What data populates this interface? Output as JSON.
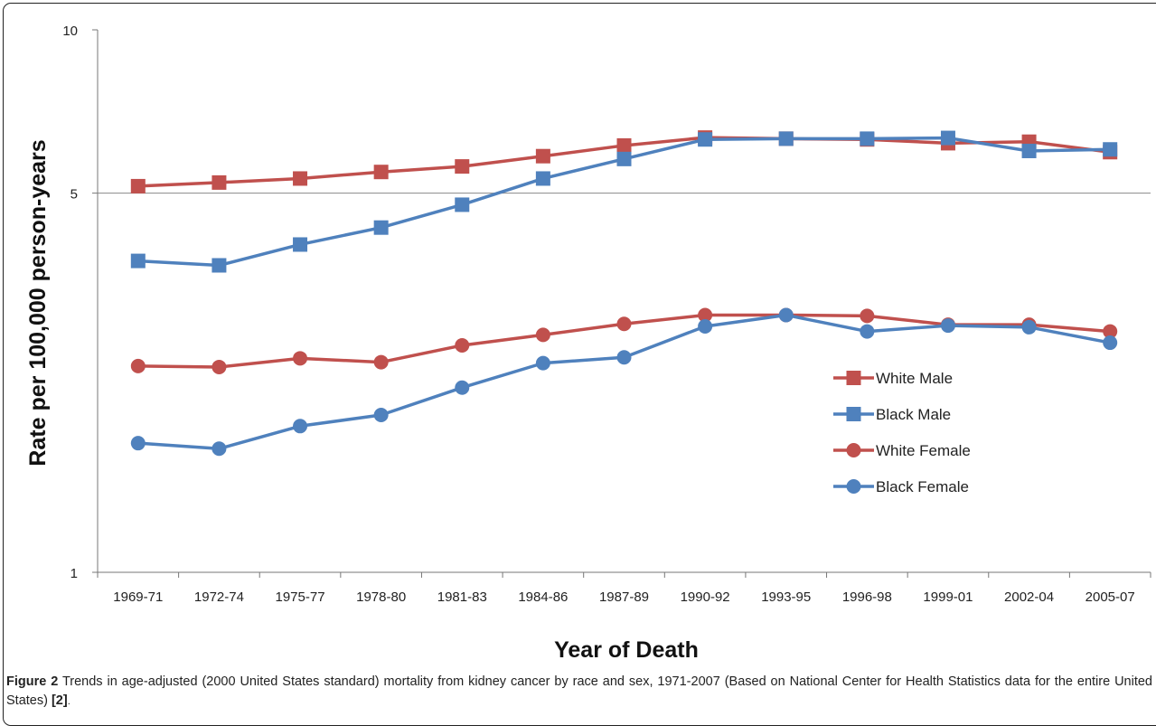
{
  "chart_data": {
    "type": "line",
    "ylabel": "Rate per 100,000 person-years",
    "xlabel": "Year of Death",
    "yscale": "log",
    "ylim": [
      1,
      10
    ],
    "yticks": [
      "1",
      "5",
      "10"
    ],
    "grid": "horizontal line at 5",
    "legend_position": "right",
    "categories": [
      "1969-71",
      "1972-74",
      "1975-77",
      "1978-80",
      "1981-83",
      "1984-86",
      "1987-89",
      "1990-92",
      "1993-95",
      "1996-98",
      "1999-01",
      "2002-04",
      "2005-07"
    ],
    "series": [
      {
        "name": "White Male",
        "marker": "square",
        "color": "#c0504d",
        "values": [
          5.15,
          5.23,
          5.32,
          5.47,
          5.6,
          5.85,
          6.12,
          6.33,
          6.3,
          6.28,
          6.18,
          6.22,
          5.95
        ]
      },
      {
        "name": "Black Male",
        "marker": "square",
        "color": "#4f81bd",
        "values": [
          3.75,
          3.68,
          4.02,
          4.32,
          4.76,
          5.32,
          5.78,
          6.28,
          6.3,
          6.3,
          6.32,
          5.98,
          6.02
        ]
      },
      {
        "name": "White Female",
        "marker": "circle",
        "color": "#c0504d",
        "values": [
          2.4,
          2.39,
          2.48,
          2.44,
          2.62,
          2.74,
          2.87,
          2.98,
          2.98,
          2.97,
          2.86,
          2.86,
          2.78
        ]
      },
      {
        "name": "Black Female",
        "marker": "circle",
        "color": "#4f81bd",
        "values": [
          1.73,
          1.69,
          1.86,
          1.95,
          2.19,
          2.43,
          2.49,
          2.84,
          2.98,
          2.78,
          2.85,
          2.83,
          2.65
        ]
      }
    ]
  },
  "caption": {
    "label": "Figure 2",
    "text": " Trends in age-adjusted (2000 United States standard) mortality from kidney cancer by race and sex, 1971-2007 (Based on National Center for Health Statistics data for the entire United States) ",
    "reference": "[2]",
    "tail": "."
  }
}
